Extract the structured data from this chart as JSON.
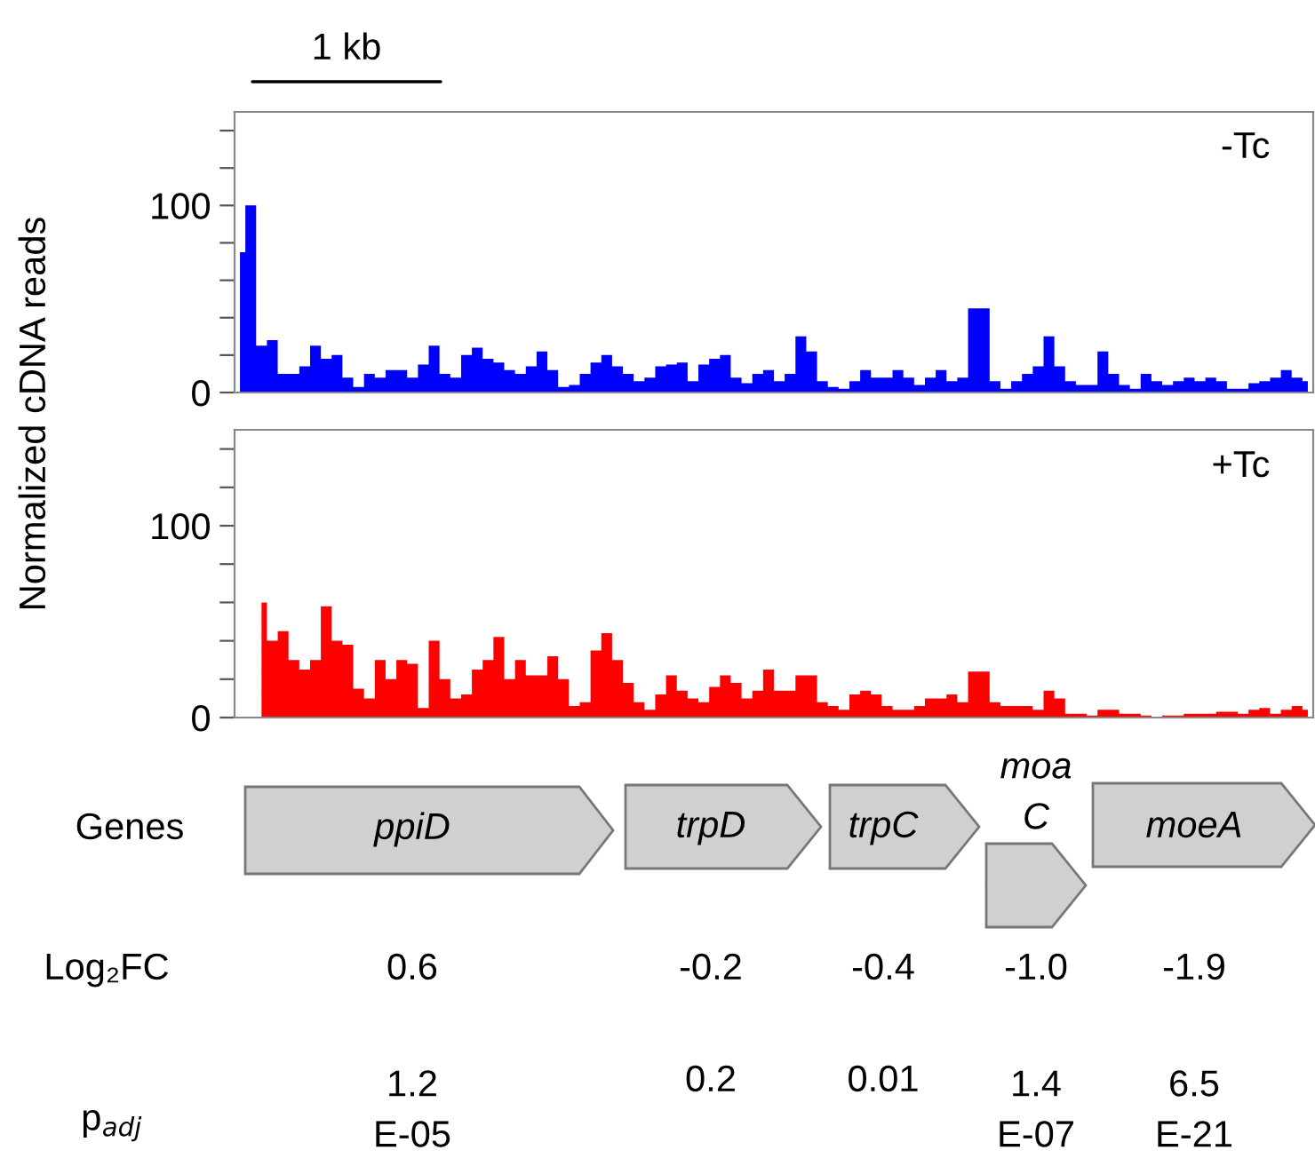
{
  "chart_data": [
    {
      "type": "area",
      "ylabel": "Normalized cDNA reads",
      "annotations": [
        "-Tc",
        "1 kb"
      ],
      "tick_labels": "y",
      "grid": false,
      "legend": false,
      "categories": [
        null,
        null,
        null,
        null,
        null,
        null,
        null,
        null,
        null,
        null,
        null,
        null,
        null,
        null,
        null,
        null,
        null,
        null,
        null,
        null,
        null,
        null,
        null,
        null,
        null,
        null,
        null,
        null,
        null,
        null,
        null,
        null,
        null,
        null,
        null,
        null,
        null,
        null,
        null,
        null,
        null,
        null,
        null,
        null,
        null,
        null,
        null,
        null,
        null,
        null,
        null,
        null,
        null,
        null,
        null,
        null,
        null,
        null,
        null,
        null,
        null,
        null,
        null,
        null,
        null,
        null,
        null,
        null,
        null,
        null,
        null,
        null,
        null,
        null,
        null,
        null,
        null,
        null,
        null,
        null,
        null,
        null,
        null,
        null,
        null,
        null,
        null,
        null,
        null,
        null,
        null,
        null,
        null,
        null,
        null,
        null,
        null,
        null,
        null,
        null
      ],
      "ylim": [
        0,
        150
      ],
      "yticks": [
        0,
        {
          "value": 20,
          "label": null
        },
        {
          "value": 40,
          "label": null
        },
        {
          "value": 60,
          "label": null
        },
        {
          "value": 80,
          "label": null
        },
        100,
        {
          "value": 120,
          "label": null
        },
        {
          "value": 140,
          "label": null
        }
      ],
      "series": [
        {
          "color": "#0000ff",
          "values": [
            75,
            100,
            25,
            28,
            10,
            10,
            14,
            25,
            18,
            20,
            8,
            3,
            10,
            8,
            12,
            12,
            8,
            15,
            25,
            10,
            8,
            20,
            24,
            18,
            16,
            12,
            10,
            14,
            22,
            12,
            3,
            4,
            10,
            16,
            20,
            14,
            10,
            6,
            8,
            14,
            15,
            16,
            6,
            15,
            18,
            20,
            8,
            5,
            10,
            12,
            6,
            10,
            30,
            22,
            6,
            3,
            2,
            6,
            12,
            8,
            8,
            12,
            8,
            4,
            8,
            12,
            6,
            8,
            45,
            45,
            6,
            2,
            6,
            10,
            14,
            30,
            14,
            6,
            4,
            4,
            22,
            10,
            4,
            2,
            10,
            6,
            4,
            6,
            8,
            6,
            8,
            6,
            2,
            2,
            5,
            6,
            8,
            12,
            8,
            6
          ]
        }
      ]
    },
    {
      "type": "area",
      "annotations": [
        "+Tc"
      ],
      "tick_labels": "y",
      "grid": false,
      "legend": false,
      "categories": [
        null,
        null,
        null,
        null,
        null,
        null,
        null,
        null,
        null,
        null,
        null,
        null,
        null,
        null,
        null,
        null,
        null,
        null,
        null,
        null,
        null,
        null,
        null,
        null,
        null,
        null,
        null,
        null,
        null,
        null,
        null,
        null,
        null,
        null,
        null,
        null,
        null,
        null,
        null,
        null,
        null,
        null,
        null,
        null,
        null,
        null,
        null,
        null,
        null,
        null,
        null,
        null,
        null,
        null,
        null,
        null,
        null,
        null,
        null,
        null,
        null,
        null,
        null,
        null,
        null,
        null,
        null,
        null,
        null,
        null,
        null,
        null,
        null,
        null,
        null,
        null,
        null,
        null,
        null,
        null,
        null,
        null,
        null,
        null,
        null,
        null,
        null,
        null,
        null,
        null,
        null,
        null,
        null,
        null,
        null,
        null,
        null,
        null,
        null,
        null
      ],
      "ylim": [
        0,
        150
      ],
      "yticks": [
        0,
        {
          "value": 20,
          "label": null
        },
        {
          "value": 40,
          "label": null
        },
        {
          "value": 60,
          "label": null
        },
        {
          "value": 80,
          "label": null
        },
        100,
        {
          "value": 120,
          "label": null
        },
        {
          "value": 140,
          "label": null
        }
      ],
      "series": [
        {
          "color": "#ff0000",
          "values": [
            null,
            null,
            60,
            40,
            45,
            30,
            25,
            30,
            58,
            40,
            38,
            15,
            10,
            30,
            20,
            30,
            28,
            5,
            40,
            20,
            10,
            12,
            25,
            30,
            42,
            20,
            30,
            22,
            22,
            32,
            20,
            6,
            8,
            35,
            44,
            30,
            18,
            8,
            4,
            12,
            22,
            14,
            10,
            8,
            16,
            22,
            18,
            10,
            14,
            25,
            14,
            14,
            22,
            22,
            8,
            6,
            4,
            12,
            14,
            12,
            6,
            4,
            4,
            6,
            10,
            10,
            12,
            8,
            24,
            24,
            8,
            6,
            6,
            6,
            4,
            14,
            10,
            2,
            2,
            1,
            4,
            4,
            2,
            2,
            1,
            0,
            1,
            1,
            2,
            2,
            2,
            3,
            3,
            2,
            4,
            5,
            2,
            4,
            6,
            4
          ]
        }
      ]
    },
    {
      "type": "other",
      "annotations": [
        "Genes",
        "ppiD",
        "trpD",
        "trpC",
        "moa\nC",
        "moeA",
        "Log₂FC",
        "0.6",
        "-0.2",
        "-0.4",
        "-1.0",
        "-1.9",
        "p$_{adj}$",
        "1.2\nE-05",
        "0.2",
        "0.01",
        "1.4\nE-07",
        "6.5\nE-21"
      ]
    }
  ]
}
